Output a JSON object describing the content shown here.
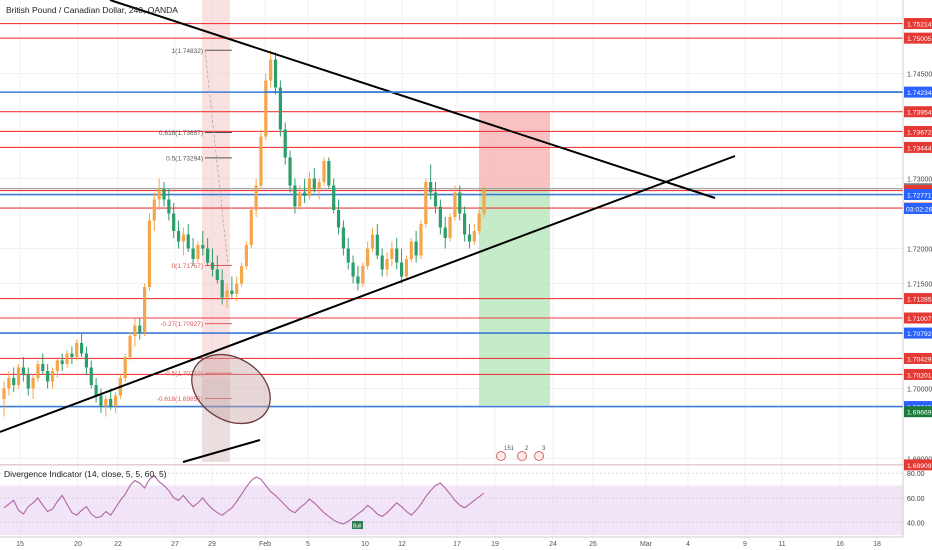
{
  "header": {
    "symbol_title": "British Pound / Canadian Dollar, 240, OANDA"
  },
  "indicator": {
    "title": "Divergence Indicator (14, close, 5, 5, 60, 5)",
    "ticks": [
      "80.00",
      "60.00",
      "40.00"
    ],
    "box_label": "Bull"
  },
  "price_scale": {
    "ticks": [
      "1.74500",
      "1.73000",
      "1.72000",
      "1.71500",
      "1.70000",
      "1.69000"
    ],
    "current_time": "03:02:26"
  },
  "colors": {
    "up_candle": "#f6a54a",
    "down_candle": "#2e9d6c",
    "red_line": "#ee3b3b",
    "blue_line": "#3a7bd5",
    "trend_line": "#000000",
    "stop_zone": "#f7b3b3",
    "target_zone": "#b7e6bb",
    "indicator_band": "#eedcf5",
    "indicator_line": "#b164a5"
  },
  "chart_data": {
    "type": "candlestick",
    "title": "British Pound / Canadian Dollar, 240, OANDA",
    "ylim": [
      1.6895,
      1.7555
    ],
    "x_labels": [
      "15",
      "20",
      "22",
      "27",
      "29",
      "Feb",
      "5",
      "10",
      "12",
      "17",
      "19",
      "24",
      "26",
      "Mar",
      "4",
      "9",
      "11",
      "16",
      "18"
    ],
    "horizontal_levels": [
      {
        "price": "1.75214",
        "color": "red"
      },
      {
        "price": "1.75005",
        "color": "red"
      },
      {
        "price": "1.74234",
        "color": "blue"
      },
      {
        "price": "1.73954",
        "color": "red"
      },
      {
        "price": "1.73672",
        "color": "red"
      },
      {
        "price": "1.73444",
        "color": "red"
      },
      {
        "price": "1.72854",
        "color": "gray"
      },
      {
        "price": "1.72828",
        "color": "red"
      },
      {
        "price": "1.72771",
        "color": "blue"
      },
      {
        "price": "1.72577",
        "color": "red"
      },
      {
        "price": "1.71285",
        "color": "red"
      },
      {
        "price": "1.71007",
        "color": "red"
      },
      {
        "price": "1.70792",
        "color": "blue"
      },
      {
        "price": "1.70429",
        "color": "red"
      },
      {
        "price": "1.70201",
        "color": "red"
      },
      {
        "price": "1.69742",
        "color": "blue"
      },
      {
        "price": "1.69669",
        "color": "green"
      },
      {
        "price": "1.68909",
        "color": "red"
      }
    ],
    "fib_levels": [
      {
        "label": "1(1.74832)",
        "price": 1.74832
      },
      {
        "label": "0.618(1.73657)",
        "price": 1.73657
      },
      {
        "label": "0.5(1.73294)",
        "price": 1.73294
      },
      {
        "label": "0(1.71757)",
        "price": 1.71757
      },
      {
        "label": "-0.27(1.70927)",
        "price": 1.70927
      },
      {
        "label": "-0.5(1.70219)",
        "price": 1.70219
      },
      {
        "label": "-0.618(1.69857)",
        "price": 1.69857
      }
    ],
    "event_badges": [
      "151",
      "2",
      "3"
    ],
    "candles": [
      [
        1.6985,
        1.701,
        1.696,
        1.7
      ],
      [
        1.7,
        1.7025,
        1.699,
        1.7015
      ],
      [
        1.7015,
        1.703,
        1.6995,
        1.7005
      ],
      [
        1.7005,
        1.7035,
        1.7,
        1.703
      ],
      [
        1.703,
        1.7045,
        1.701,
        1.702
      ],
      [
        1.702,
        1.703,
        1.699,
        1.7
      ],
      [
        1.7,
        1.702,
        1.6985,
        1.7015
      ],
      [
        1.7015,
        1.704,
        1.701,
        1.7035
      ],
      [
        1.7035,
        1.705,
        1.702,
        1.7025
      ],
      [
        1.7025,
        1.7035,
        1.7,
        1.701
      ],
      [
        1.701,
        1.703,
        1.7,
        1.7025
      ],
      [
        1.7025,
        1.7045,
        1.7015,
        1.704
      ],
      [
        1.704,
        1.705,
        1.7025,
        1.7035
      ],
      [
        1.7035,
        1.7055,
        1.703,
        1.705
      ],
      [
        1.705,
        1.706,
        1.7035,
        1.7045
      ],
      [
        1.7045,
        1.707,
        1.704,
        1.7065
      ],
      [
        1.7065,
        1.708,
        1.7045,
        1.705
      ],
      [
        1.705,
        1.706,
        1.702,
        1.703
      ],
      [
        1.703,
        1.704,
        1.7,
        1.7005
      ],
      [
        1.7005,
        1.7015,
        1.698,
        1.699
      ],
      [
        1.699,
        1.7,
        1.6965,
        1.6975
      ],
      [
        1.6975,
        1.699,
        1.696,
        1.6985
      ],
      [
        1.6985,
        1.7,
        1.697,
        1.6975
      ],
      [
        1.6975,
        1.6995,
        1.6965,
        1.699
      ],
      [
        1.699,
        1.702,
        1.6985,
        1.7015
      ],
      [
        1.7015,
        1.705,
        1.701,
        1.7045
      ],
      [
        1.7045,
        1.708,
        1.704,
        1.7075
      ],
      [
        1.7075,
        1.71,
        1.706,
        1.709
      ],
      [
        1.709,
        1.71,
        1.707,
        1.708
      ],
      [
        1.708,
        1.715,
        1.7075,
        1.7145
      ],
      [
        1.7145,
        1.725,
        1.714,
        1.724
      ],
      [
        1.724,
        1.728,
        1.7225,
        1.727
      ],
      [
        1.727,
        1.73,
        1.7255,
        1.7285
      ],
      [
        1.7285,
        1.7295,
        1.726,
        1.727
      ],
      [
        1.727,
        1.7285,
        1.724,
        1.725
      ],
      [
        1.725,
        1.7265,
        1.7215,
        1.7225
      ],
      [
        1.7225,
        1.724,
        1.72,
        1.721
      ],
      [
        1.721,
        1.723,
        1.719,
        1.722
      ],
      [
        1.722,
        1.7235,
        1.7195,
        1.72
      ],
      [
        1.72,
        1.7215,
        1.7175,
        1.7185
      ],
      [
        1.7185,
        1.721,
        1.718,
        1.7205
      ],
      [
        1.7205,
        1.7225,
        1.719,
        1.72
      ],
      [
        1.72,
        1.7215,
        1.7175,
        1.718
      ],
      [
        1.718,
        1.72,
        1.716,
        1.717
      ],
      [
        1.717,
        1.719,
        1.715,
        1.7155
      ],
      [
        1.7155,
        1.717,
        1.712,
        1.713
      ],
      [
        1.713,
        1.715,
        1.7115,
        1.714
      ],
      [
        1.714,
        1.716,
        1.713,
        1.7135
      ],
      [
        1.7135,
        1.716,
        1.7125,
        1.715
      ],
      [
        1.715,
        1.718,
        1.7145,
        1.7175
      ],
      [
        1.7175,
        1.721,
        1.717,
        1.7205
      ],
      [
        1.7205,
        1.726,
        1.72,
        1.7255
      ],
      [
        1.7255,
        1.73,
        1.7245,
        1.729
      ],
      [
        1.729,
        1.737,
        1.7285,
        1.736
      ],
      [
        1.736,
        1.745,
        1.7355,
        1.744
      ],
      [
        1.744,
        1.7483,
        1.743,
        1.747
      ],
      [
        1.747,
        1.748,
        1.742,
        1.743
      ],
      [
        1.743,
        1.744,
        1.736,
        1.737
      ],
      [
        1.737,
        1.738,
        1.732,
        1.733
      ],
      [
        1.733,
        1.734,
        1.728,
        1.729
      ],
      [
        1.729,
        1.73,
        1.725,
        1.726
      ],
      [
        1.726,
        1.729,
        1.7255,
        1.728
      ],
      [
        1.728,
        1.73,
        1.7265,
        1.7275
      ],
      [
        1.7275,
        1.731,
        1.727,
        1.73
      ],
      [
        1.73,
        1.7315,
        1.728,
        1.7285
      ],
      [
        1.7285,
        1.73,
        1.727,
        1.7295
      ],
      [
        1.7295,
        1.733,
        1.729,
        1.7325
      ],
      [
        1.7325,
        1.733,
        1.7285,
        1.729
      ],
      [
        1.729,
        1.73,
        1.725,
        1.7255
      ],
      [
        1.7255,
        1.727,
        1.722,
        1.723
      ],
      [
        1.723,
        1.724,
        1.719,
        1.72
      ],
      [
        1.72,
        1.7215,
        1.717,
        1.718
      ],
      [
        1.718,
        1.719,
        1.715,
        1.716
      ],
      [
        1.716,
        1.7175,
        1.714,
        1.715
      ],
      [
        1.715,
        1.718,
        1.7145,
        1.7175
      ],
      [
        1.7175,
        1.721,
        1.717,
        1.72
      ],
      [
        1.72,
        1.723,
        1.7195,
        1.722
      ],
      [
        1.722,
        1.7235,
        1.7185,
        1.719
      ],
      [
        1.719,
        1.72,
        1.716,
        1.717
      ],
      [
        1.717,
        1.7195,
        1.716,
        1.7185
      ],
      [
        1.7185,
        1.721,
        1.7175,
        1.72
      ],
      [
        1.72,
        1.7215,
        1.717,
        1.718
      ],
      [
        1.718,
        1.72,
        1.715,
        1.716
      ],
      [
        1.716,
        1.719,
        1.7155,
        1.7185
      ],
      [
        1.7185,
        1.7215,
        1.718,
        1.721
      ],
      [
        1.721,
        1.7225,
        1.718,
        1.719
      ],
      [
        1.719,
        1.724,
        1.7185,
        1.7235
      ],
      [
        1.7235,
        1.73,
        1.723,
        1.7295
      ],
      [
        1.7295,
        1.732,
        1.727,
        1.728
      ],
      [
        1.728,
        1.7295,
        1.725,
        1.726
      ],
      [
        1.726,
        1.727,
        1.722,
        1.723
      ],
      [
        1.723,
        1.7245,
        1.72,
        1.7215
      ],
      [
        1.7215,
        1.725,
        1.721,
        1.7245
      ],
      [
        1.7245,
        1.729,
        1.724,
        1.728
      ],
      [
        1.728,
        1.729,
        1.724,
        1.725
      ],
      [
        1.725,
        1.726,
        1.721,
        1.722
      ],
      [
        1.722,
        1.7235,
        1.72,
        1.721
      ],
      [
        1.721,
        1.7235,
        1.7205,
        1.7225
      ],
      [
        1.7225,
        1.726,
        1.722,
        1.725
      ],
      [
        1.725,
        1.729,
        1.7245,
        1.7285
      ]
    ],
    "indicator_series": [
      52,
      55,
      58,
      50,
      47,
      53,
      56,
      60,
      54,
      49,
      51,
      57,
      62,
      55,
      48,
      46,
      50,
      53,
      47,
      44,
      45,
      49,
      46,
      52,
      58,
      63,
      70,
      74,
      72,
      68,
      75,
      78,
      73,
      70,
      66,
      60,
      58,
      62,
      57,
      53,
      56,
      60,
      55,
      51,
      48,
      46,
      49,
      52,
      57,
      63,
      69,
      74,
      77,
      75,
      70,
      65,
      62,
      58,
      54,
      50,
      48,
      52,
      55,
      59,
      56,
      52,
      48,
      45,
      42,
      40,
      39,
      41,
      44,
      47,
      50,
      54,
      51,
      47,
      45,
      48,
      52,
      56,
      53,
      49,
      46,
      50,
      55,
      61,
      66,
      70,
      72,
      68,
      63,
      58,
      54,
      52,
      55,
      58,
      61,
      64
    ],
    "indicator_ylim": [
      30,
      85
    ]
  }
}
